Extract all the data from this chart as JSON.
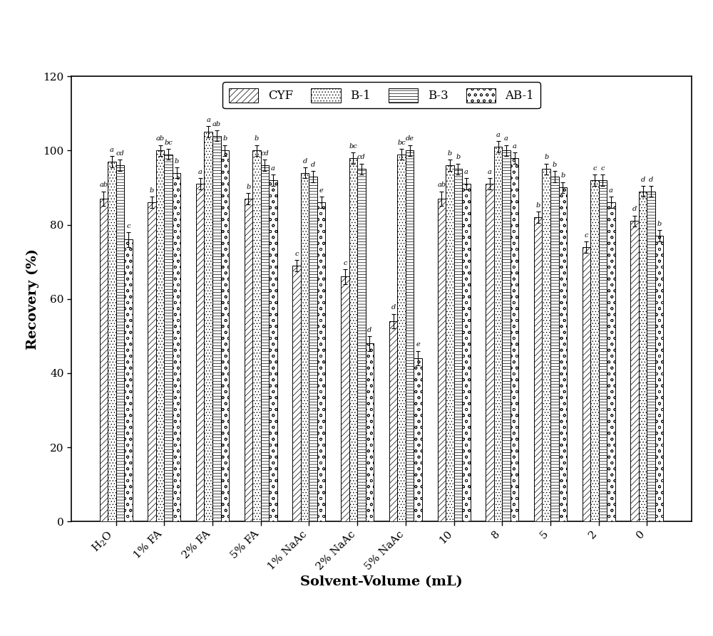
{
  "categories": [
    "H$_2$O",
    "1% FA",
    "2% FA",
    "5% FA",
    "1% NaAc",
    "2% NaAc",
    "5% NaAc",
    "10",
    "8",
    "5",
    "2",
    "0"
  ],
  "series": {
    "CYF": [
      87.0,
      86.0,
      91.0,
      87.0,
      69.0,
      66.0,
      54.0,
      87.0,
      91.0,
      82.0,
      74.0,
      81.0
    ],
    "B-1": [
      97.0,
      100.0,
      105.0,
      100.0,
      94.0,
      98.0,
      99.0,
      96.0,
      101.0,
      95.0,
      92.0,
      89.0
    ],
    "B-3": [
      96.0,
      99.0,
      104.0,
      96.0,
      93.0,
      95.0,
      100.0,
      95.0,
      100.0,
      93.0,
      92.0,
      89.0
    ],
    "AB-1": [
      76.0,
      94.0,
      100.0,
      92.0,
      86.0,
      48.0,
      44.0,
      91.0,
      98.0,
      90.0,
      86.0,
      77.0
    ]
  },
  "errors": {
    "CYF": [
      2.0,
      1.5,
      1.5,
      1.5,
      1.5,
      2.0,
      2.0,
      2.0,
      1.5,
      1.5,
      1.5,
      1.5
    ],
    "B-1": [
      1.5,
      1.5,
      1.5,
      1.5,
      1.5,
      1.5,
      1.5,
      1.5,
      1.5,
      1.5,
      1.5,
      1.5
    ],
    "B-3": [
      1.5,
      1.5,
      1.5,
      1.5,
      1.5,
      1.5,
      1.5,
      1.5,
      1.5,
      1.5,
      1.5,
      1.5
    ],
    "AB-1": [
      2.0,
      1.5,
      1.5,
      1.5,
      1.5,
      2.0,
      2.0,
      1.5,
      1.5,
      1.5,
      1.5,
      1.5
    ]
  },
  "labels": {
    "CYF": [
      "ab",
      "b",
      "a",
      "b",
      "c",
      "c",
      "d",
      "ab",
      "a",
      "b",
      "c",
      "d"
    ],
    "B-1": [
      "a",
      "ab",
      "a",
      "b",
      "d",
      "bc",
      "bc",
      "b",
      "a",
      "b",
      "c",
      "d"
    ],
    "B-3": [
      "cd",
      "bc",
      "ab",
      "cd",
      "d",
      "cd",
      "de",
      "b",
      "a",
      "b",
      "c",
      "d"
    ],
    "AB-1": [
      "c",
      "b",
      "b",
      "a",
      "e",
      "d",
      "e",
      "a",
      "a",
      "b",
      "a",
      "b"
    ]
  },
  "ylabel": "Recovery (%)",
  "xlabel": "Solvent-Volume (mL)",
  "ylim": [
    0,
    120
  ],
  "yticks": [
    0,
    20,
    40,
    60,
    80,
    100,
    120
  ],
  "legend_labels": [
    "CYF",
    "B-1",
    "B-3",
    "AB-1"
  ],
  "hatch_patterns": [
    "////",
    "....",
    "----",
    "oo"
  ],
  "bar_width": 0.17,
  "figsize": [
    10.0,
    8.93
  ],
  "dpi": 100
}
